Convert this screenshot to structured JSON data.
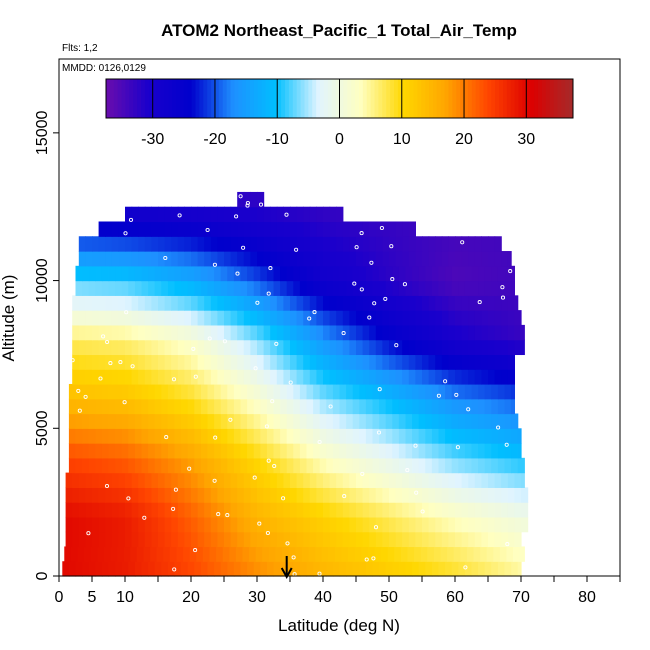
{
  "chart_data": {
    "type": "heatmap",
    "title": "ATOM2 Northeast_Pacific_1 Total_Air_Temp",
    "flights_label": "Flts: 1,2",
    "dates_label": "MMDD: 0126,0129",
    "xlabel": "Latitude (deg N)",
    "ylabel": "Altitude (m)",
    "xlim": [
      0,
      85
    ],
    "ylim": [
      0,
      17500
    ],
    "x_ticks": [
      0,
      5,
      10,
      20,
      30,
      40,
      50,
      60,
      70,
      80
    ],
    "x_tick_labels": [
      "0",
      "5",
      "10",
      "20",
      "30",
      "40",
      "50",
      "60",
      "70",
      "80"
    ],
    "y_ticks": [
      0,
      5000,
      10000,
      15000
    ],
    "y_tick_labels": [
      "0",
      "5000",
      "10000",
      "15000"
    ],
    "colorbar": {
      "range": [
        -37.5,
        37.5
      ],
      "ticks": [
        -30,
        -20,
        -10,
        0,
        10,
        20,
        30
      ],
      "tick_labels": [
        "-30",
        "-20",
        "-10",
        "0",
        "10",
        "20",
        "30"
      ],
      "colors": [
        "#6a0dad",
        "#1a00cc",
        "#0000cc",
        "#1e90ff",
        "#00bfff",
        "#e0f4ff",
        "#ffffc0",
        "#ffd700",
        "#ffa500",
        "#ff4500",
        "#dd0000",
        "#a52a2a"
      ]
    },
    "marker": {
      "latitude": 34.5,
      "symbol": "arrow-down"
    },
    "altitude_bands_m": [
      250,
      750,
      1250,
      1750,
      2250,
      2750,
      3250,
      3750,
      4250,
      4750,
      5250,
      5750,
      6250,
      6750,
      7250,
      7750,
      8250,
      8750,
      9250,
      9750,
      10250,
      10750,
      11250,
      11750,
      12250,
      12750
    ],
    "band_lat_extent": [
      [
        0.5,
        70
      ],
      [
        0.8,
        70.5
      ],
      [
        1,
        70
      ],
      [
        1,
        71
      ],
      [
        1,
        71
      ],
      [
        1,
        71
      ],
      [
        1,
        70.5
      ],
      [
        1.5,
        70.5
      ],
      [
        1.5,
        70
      ],
      [
        1.5,
        70
      ],
      [
        1.5,
        69.5
      ],
      [
        1.5,
        69
      ],
      [
        1.5,
        69
      ],
      [
        2,
        69
      ],
      [
        2,
        69
      ],
      [
        2,
        70.5
      ],
      [
        2,
        70.5
      ],
      [
        2,
        70
      ],
      [
        2,
        69.5
      ],
      [
        2.5,
        69
      ],
      [
        2.5,
        69
      ],
      [
        3,
        68.5
      ],
      [
        3,
        67
      ],
      [
        6,
        54
      ],
      [
        10,
        43
      ],
      [
        27,
        31
      ]
    ],
    "temperature_profile": {
      "lat_nodes": [
        0,
        10,
        20,
        30,
        40,
        50,
        60,
        70
      ],
      "alt_nodes_m": [
        0,
        2000,
        4000,
        6000,
        8000,
        10000,
        12000,
        13000
      ],
      "temp_c": [
        [
          30,
          28,
          24,
          19,
          15,
          12,
          9,
          5
        ],
        [
          30,
          28,
          22,
          15,
          11,
          7,
          3,
          0
        ],
        [
          24,
          22,
          17,
          10,
          3,
          -2,
          -7,
          -10
        ],
        [
          14,
          13,
          9,
          2,
          -6,
          -11,
          -17,
          -20
        ],
        [
          7,
          6,
          2,
          -6,
          -16,
          -24,
          -30,
          -33
        ],
        [
          -8,
          -9,
          -13,
          -20,
          -28,
          -32,
          -35,
          -34
        ],
        [
          -26,
          -27,
          -28,
          -30,
          -32,
          -33,
          -34,
          -34
        ],
        [
          -32,
          -32,
          -33,
          -33,
          -34,
          -34,
          -34,
          -34
        ]
      ]
    }
  }
}
